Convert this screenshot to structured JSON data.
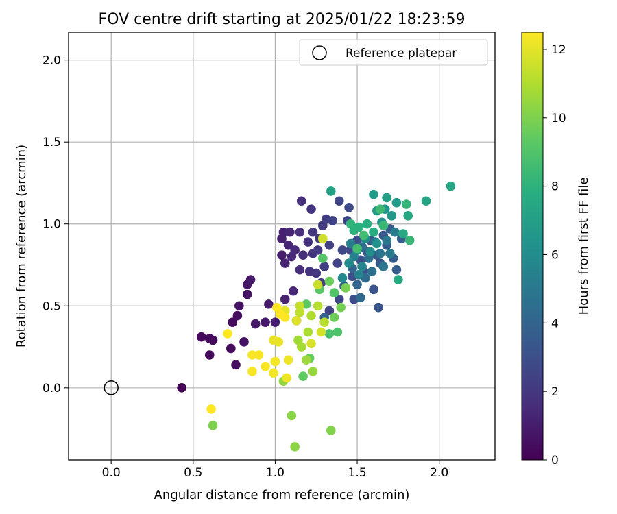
{
  "chart_data": {
    "type": "scatter",
    "title": "FOV centre drift starting at 2025/01/22 18:23:59",
    "xlabel": "Angular distance from reference (arcmin)",
    "ylabel": "Rotation from reference (arcmin)",
    "xlim": [
      -0.26,
      2.34
    ],
    "ylim": [
      -0.44,
      2.17
    ],
    "xticks": [
      0.0,
      0.5,
      1.0,
      1.5,
      2.0
    ],
    "xtick_labels": [
      "0.0",
      "0.5",
      "1.0",
      "1.5",
      "2.0"
    ],
    "yticks": [
      0.0,
      0.5,
      1.0,
      1.5,
      2.0
    ],
    "ytick_labels": [
      "0.0",
      "0.5",
      "1.0",
      "1.5",
      "2.0"
    ],
    "grid": true,
    "legend": {
      "placement": "top-right",
      "entries": [
        "Reference platepar"
      ]
    },
    "reference_point": {
      "x": 0.0,
      "y": 0.0,
      "label": "Reference platepar"
    },
    "colorbar": {
      "label": "Hours from first FF file",
      "range": [
        0,
        12.5
      ],
      "ticks": [
        0,
        2,
        4,
        6,
        8,
        10,
        12
      ],
      "tick_labels": [
        "0",
        "2",
        "4",
        "6",
        "8",
        "10",
        "12"
      ],
      "colormap": "viridis"
    },
    "points": [
      {
        "x": 0.43,
        "y": 0.0,
        "h": 0.1
      },
      {
        "x": 0.55,
        "y": 0.31,
        "h": 0.2
      },
      {
        "x": 0.6,
        "y": 0.3,
        "h": 0.2
      },
      {
        "x": 0.62,
        "y": 0.29,
        "h": 0.3
      },
      {
        "x": 0.6,
        "y": 0.2,
        "h": 0.3
      },
      {
        "x": 0.73,
        "y": 0.24,
        "h": 0.4
      },
      {
        "x": 0.74,
        "y": 0.4,
        "h": 0.4
      },
      {
        "x": 0.76,
        "y": 0.14,
        "h": 0.5
      },
      {
        "x": 0.77,
        "y": 0.44,
        "h": 0.5
      },
      {
        "x": 0.78,
        "y": 0.5,
        "h": 0.6
      },
      {
        "x": 0.81,
        "y": 0.28,
        "h": 0.6
      },
      {
        "x": 0.83,
        "y": 0.57,
        "h": 0.7
      },
      {
        "x": 0.83,
        "y": 0.63,
        "h": 0.7
      },
      {
        "x": 0.85,
        "y": 0.66,
        "h": 0.8
      },
      {
        "x": 0.88,
        "y": 0.39,
        "h": 0.8
      },
      {
        "x": 0.94,
        "y": 0.4,
        "h": 0.9
      },
      {
        "x": 0.96,
        "y": 0.51,
        "h": 0.9
      },
      {
        "x": 1.0,
        "y": 0.4,
        "h": 1.0
      },
      {
        "x": 1.04,
        "y": 0.81,
        "h": 1.0
      },
      {
        "x": 1.04,
        "y": 0.91,
        "h": 1.1
      },
      {
        "x": 1.05,
        "y": 0.95,
        "h": 1.1
      },
      {
        "x": 1.06,
        "y": 0.54,
        "h": 1.2
      },
      {
        "x": 1.06,
        "y": 0.76,
        "h": 1.2
      },
      {
        "x": 1.09,
        "y": 0.95,
        "h": 1.3
      },
      {
        "x": 1.08,
        "y": 0.87,
        "h": 1.3
      },
      {
        "x": 1.1,
        "y": 0.8,
        "h": 1.4
      },
      {
        "x": 1.11,
        "y": 0.59,
        "h": 1.4
      },
      {
        "x": 1.12,
        "y": 0.84,
        "h": 1.5
      },
      {
        "x": 1.13,
        "y": 0.41,
        "h": 1.5
      },
      {
        "x": 1.15,
        "y": 0.95,
        "h": 1.6
      },
      {
        "x": 1.15,
        "y": 0.72,
        "h": 1.6
      },
      {
        "x": 1.16,
        "y": 1.14,
        "h": 1.7
      },
      {
        "x": 1.17,
        "y": 0.81,
        "h": 1.7
      },
      {
        "x": 1.2,
        "y": 0.89,
        "h": 1.8
      },
      {
        "x": 1.21,
        "y": 0.71,
        "h": 1.8
      },
      {
        "x": 1.22,
        "y": 1.09,
        "h": 1.9
      },
      {
        "x": 1.23,
        "y": 0.82,
        "h": 1.9
      },
      {
        "x": 1.23,
        "y": 0.95,
        "h": 2.0
      },
      {
        "x": 1.25,
        "y": 0.7,
        "h": 2.0
      },
      {
        "x": 1.26,
        "y": 0.84,
        "h": 2.1
      },
      {
        "x": 1.27,
        "y": 0.91,
        "h": 2.1
      },
      {
        "x": 1.28,
        "y": 0.64,
        "h": 2.2
      },
      {
        "x": 1.29,
        "y": 0.99,
        "h": 2.2
      },
      {
        "x": 1.3,
        "y": 0.74,
        "h": 2.3
      },
      {
        "x": 1.31,
        "y": 1.03,
        "h": 2.3
      },
      {
        "x": 1.33,
        "y": 0.87,
        "h": 2.4
      },
      {
        "x": 1.33,
        "y": 0.47,
        "h": 2.4
      },
      {
        "x": 1.35,
        "y": 1.02,
        "h": 2.5
      },
      {
        "x": 1.38,
        "y": 0.76,
        "h": 2.5
      },
      {
        "x": 1.39,
        "y": 0.54,
        "h": 2.6
      },
      {
        "x": 1.39,
        "y": 1.14,
        "h": 2.6
      },
      {
        "x": 1.41,
        "y": 0.84,
        "h": 2.7
      },
      {
        "x": 1.44,
        "y": 1.02,
        "h": 2.7
      },
      {
        "x": 1.45,
        "y": 1.1,
        "h": 2.8
      },
      {
        "x": 1.46,
        "y": 0.84,
        "h": 2.8
      },
      {
        "x": 1.47,
        "y": 0.68,
        "h": 2.9
      },
      {
        "x": 1.48,
        "y": 0.54,
        "h": 2.9
      },
      {
        "x": 1.5,
        "y": 0.9,
        "h": 3.0
      },
      {
        "x": 1.52,
        "y": 0.78,
        "h": 3.0
      },
      {
        "x": 1.54,
        "y": 0.71,
        "h": 3.1
      },
      {
        "x": 1.56,
        "y": 0.83,
        "h": 3.1
      },
      {
        "x": 1.58,
        "y": 0.9,
        "h": 3.2
      },
      {
        "x": 1.6,
        "y": 0.6,
        "h": 3.2
      },
      {
        "x": 1.62,
        "y": 0.81,
        "h": 3.3
      },
      {
        "x": 1.63,
        "y": 0.49,
        "h": 3.3
      },
      {
        "x": 1.64,
        "y": 0.76,
        "h": 3.4
      },
      {
        "x": 1.66,
        "y": 0.93,
        "h": 3.4
      },
      {
        "x": 1.68,
        "y": 0.87,
        "h": 3.5
      },
      {
        "x": 1.7,
        "y": 0.97,
        "h": 3.5
      },
      {
        "x": 1.72,
        "y": 0.79,
        "h": 3.6
      },
      {
        "x": 1.74,
        "y": 0.72,
        "h": 3.6
      },
      {
        "x": 1.77,
        "y": 0.91,
        "h": 3.7
      },
      {
        "x": 1.3,
        "y": 0.43,
        "h": 3.8
      },
      {
        "x": 1.42,
        "y": 0.62,
        "h": 3.9
      },
      {
        "x": 1.47,
        "y": 0.73,
        "h": 4.0
      },
      {
        "x": 1.5,
        "y": 0.63,
        "h": 4.1
      },
      {
        "x": 1.52,
        "y": 0.55,
        "h": 4.2
      },
      {
        "x": 1.53,
        "y": 0.86,
        "h": 4.3
      },
      {
        "x": 1.55,
        "y": 0.67,
        "h": 4.4
      },
      {
        "x": 1.57,
        "y": 0.79,
        "h": 4.5
      },
      {
        "x": 1.59,
        "y": 0.71,
        "h": 4.6
      },
      {
        "x": 1.61,
        "y": 0.89,
        "h": 4.7
      },
      {
        "x": 1.64,
        "y": 0.82,
        "h": 4.8
      },
      {
        "x": 1.66,
        "y": 0.74,
        "h": 4.9
      },
      {
        "x": 1.68,
        "y": 0.9,
        "h": 5.0
      },
      {
        "x": 1.7,
        "y": 0.82,
        "h": 5.1
      },
      {
        "x": 1.73,
        "y": 0.95,
        "h": 5.2
      },
      {
        "x": 1.46,
        "y": 0.88,
        "h": 5.3
      },
      {
        "x": 1.48,
        "y": 0.8,
        "h": 5.4
      },
      {
        "x": 1.51,
        "y": 0.69,
        "h": 5.5
      },
      {
        "x": 1.53,
        "y": 0.74,
        "h": 5.6
      },
      {
        "x": 1.36,
        "y": 0.58,
        "h": 5.7
      },
      {
        "x": 1.41,
        "y": 0.67,
        "h": 5.8
      },
      {
        "x": 1.45,
        "y": 0.76,
        "h": 5.9
      },
      {
        "x": 1.5,
        "y": 0.84,
        "h": 6.0
      },
      {
        "x": 1.55,
        "y": 0.91,
        "h": 6.1
      },
      {
        "x": 1.58,
        "y": 0.83,
        "h": 6.2
      },
      {
        "x": 1.62,
        "y": 0.88,
        "h": 6.3
      },
      {
        "x": 1.65,
        "y": 1.01,
        "h": 6.4
      },
      {
        "x": 1.67,
        "y": 1.09,
        "h": 6.5
      },
      {
        "x": 1.71,
        "y": 1.05,
        "h": 6.6
      },
      {
        "x": 1.74,
        "y": 1.13,
        "h": 6.7
      },
      {
        "x": 1.6,
        "y": 1.18,
        "h": 6.8
      },
      {
        "x": 1.62,
        "y": 1.08,
        "h": 6.9
      },
      {
        "x": 1.68,
        "y": 1.16,
        "h": 7.0
      },
      {
        "x": 1.34,
        "y": 1.2,
        "h": 7.1
      },
      {
        "x": 1.92,
        "y": 1.14,
        "h": 7.2
      },
      {
        "x": 2.07,
        "y": 1.23,
        "h": 7.3
      },
      {
        "x": 1.81,
        "y": 1.05,
        "h": 7.4
      },
      {
        "x": 1.78,
        "y": 0.94,
        "h": 7.5
      },
      {
        "x": 1.75,
        "y": 0.66,
        "h": 7.6
      },
      {
        "x": 1.6,
        "y": 0.95,
        "h": 7.7
      },
      {
        "x": 1.56,
        "y": 1.0,
        "h": 7.8
      },
      {
        "x": 1.51,
        "y": 0.98,
        "h": 7.9
      },
      {
        "x": 1.48,
        "y": 0.96,
        "h": 8.0
      },
      {
        "x": 1.46,
        "y": 1.0,
        "h": 8.1
      },
      {
        "x": 1.8,
        "y": 1.12,
        "h": 8.2
      },
      {
        "x": 1.82,
        "y": 0.9,
        "h": 8.3
      },
      {
        "x": 1.66,
        "y": 0.99,
        "h": 8.4
      },
      {
        "x": 1.64,
        "y": 1.09,
        "h": 8.5
      },
      {
        "x": 1.54,
        "y": 0.93,
        "h": 8.6
      },
      {
        "x": 1.5,
        "y": 0.85,
        "h": 8.7
      },
      {
        "x": 1.33,
        "y": 0.33,
        "h": 8.8
      },
      {
        "x": 1.38,
        "y": 0.34,
        "h": 8.9
      },
      {
        "x": 1.36,
        "y": 0.58,
        "h": 9.0
      },
      {
        "x": 1.29,
        "y": 0.79,
        "h": 9.1
      },
      {
        "x": 1.27,
        "y": 0.6,
        "h": 9.2
      },
      {
        "x": 1.19,
        "y": 0.51,
        "h": 9.3
      },
      {
        "x": 1.17,
        "y": 0.07,
        "h": 9.4
      },
      {
        "x": 1.21,
        "y": 0.18,
        "h": 9.5
      },
      {
        "x": 1.33,
        "y": 0.65,
        "h": 9.6
      },
      {
        "x": 1.36,
        "y": 0.43,
        "h": 9.7
      },
      {
        "x": 1.4,
        "y": 0.49,
        "h": 9.8
      },
      {
        "x": 1.43,
        "y": 0.61,
        "h": 9.9
      },
      {
        "x": 0.62,
        "y": -0.23,
        "h": 10.0
      },
      {
        "x": 1.34,
        "y": -0.26,
        "h": 10.1
      },
      {
        "x": 1.1,
        "y": -0.17,
        "h": 10.2
      },
      {
        "x": 1.12,
        "y": -0.36,
        "h": 10.3
      },
      {
        "x": 1.05,
        "y": 0.04,
        "h": 10.4
      },
      {
        "x": 1.23,
        "y": 0.1,
        "h": 10.5
      },
      {
        "x": 1.19,
        "y": 0.17,
        "h": 10.6
      },
      {
        "x": 1.14,
        "y": 0.29,
        "h": 10.7
      },
      {
        "x": 1.16,
        "y": 0.25,
        "h": 10.8
      },
      {
        "x": 1.2,
        "y": 0.34,
        "h": 10.9
      },
      {
        "x": 1.22,
        "y": 0.44,
        "h": 11.0
      },
      {
        "x": 1.26,
        "y": 0.5,
        "h": 11.1
      },
      {
        "x": 1.3,
        "y": 0.4,
        "h": 11.2
      },
      {
        "x": 1.15,
        "y": 0.46,
        "h": 11.3
      },
      {
        "x": 1.15,
        "y": 0.5,
        "h": 11.4
      },
      {
        "x": 1.26,
        "y": 0.63,
        "h": 11.5
      },
      {
        "x": 1.29,
        "y": 0.91,
        "h": 11.6
      },
      {
        "x": 1.28,
        "y": 0.34,
        "h": 11.7
      },
      {
        "x": 1.22,
        "y": 0.27,
        "h": 11.8
      },
      {
        "x": 1.13,
        "y": 0.41,
        "h": 11.9
      },
      {
        "x": 1.06,
        "y": 0.47,
        "h": 12.0
      },
      {
        "x": 1.02,
        "y": 0.28,
        "h": 12.1
      },
      {
        "x": 0.99,
        "y": 0.29,
        "h": 12.1
      },
      {
        "x": 1.08,
        "y": 0.17,
        "h": 12.2
      },
      {
        "x": 1.07,
        "y": 0.06,
        "h": 12.2
      },
      {
        "x": 1.0,
        "y": 0.16,
        "h": 12.3
      },
      {
        "x": 0.99,
        "y": 0.09,
        "h": 12.3
      },
      {
        "x": 0.94,
        "y": 0.13,
        "h": 12.4
      },
      {
        "x": 0.9,
        "y": 0.2,
        "h": 12.4
      },
      {
        "x": 0.86,
        "y": 0.1,
        "h": 12.4
      },
      {
        "x": 0.86,
        "y": 0.2,
        "h": 12.4
      },
      {
        "x": 0.71,
        "y": 0.33,
        "h": 12.5
      },
      {
        "x": 0.61,
        "y": -0.13,
        "h": 12.5
      },
      {
        "x": 1.01,
        "y": 0.49,
        "h": 12.5
      },
      {
        "x": 1.03,
        "y": 0.45,
        "h": 12.5
      },
      {
        "x": 1.06,
        "y": 0.43,
        "h": 12.5
      }
    ]
  }
}
